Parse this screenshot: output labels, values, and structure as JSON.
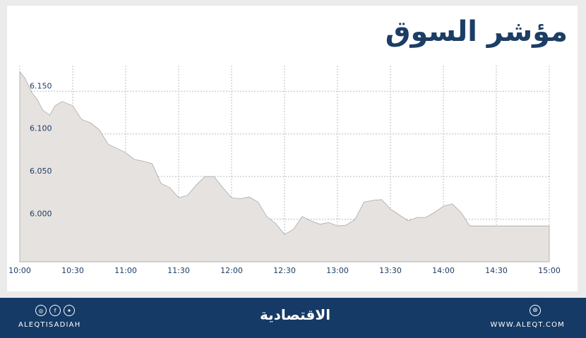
{
  "header": {
    "title": "مؤشر السوق"
  },
  "chart_data": {
    "type": "area",
    "title": "مؤشر السوق",
    "xlabel": "",
    "ylabel": "",
    "x_ticks": [
      "10:00",
      "10:30",
      "11:00",
      "11:30",
      "12:00",
      "12:30",
      "13:00",
      "13:30",
      "14:00",
      "14:30",
      "15:00"
    ],
    "y_ticks": [
      "6.150",
      "6.100",
      "6.050",
      "6.000"
    ],
    "ylim": [
      5.95,
      6.18
    ],
    "grid": true,
    "series": [
      {
        "x_minutes": [
          0,
          3,
          7,
          10,
          13,
          17,
          20,
          24,
          30,
          35,
          40,
          45,
          50,
          55,
          60,
          65,
          70,
          75,
          80,
          85,
          90,
          95,
          100,
          105,
          110,
          115,
          120,
          125,
          130,
          135,
          140,
          145,
          150,
          155,
          160,
          165,
          170,
          175,
          180,
          185,
          190,
          195,
          200,
          205,
          210,
          215,
          220,
          225,
          230,
          235,
          240,
          245,
          250,
          255,
          260,
          265,
          270,
          275,
          280,
          285,
          290,
          295,
          300
        ],
        "values": [
          6.173,
          6.165,
          6.148,
          6.14,
          6.128,
          6.122,
          6.133,
          6.138,
          6.133,
          6.117,
          6.113,
          6.105,
          6.088,
          6.083,
          6.078,
          6.07,
          6.068,
          6.065,
          6.042,
          6.037,
          6.025,
          6.028,
          6.04,
          6.05,
          6.05,
          6.037,
          6.025,
          6.024,
          6.026,
          6.02,
          6.003,
          5.995,
          5.982,
          5.988,
          6.003,
          5.998,
          5.994,
          5.996,
          5.992,
          5.993,
          6.0,
          6.02,
          6.022,
          6.023,
          6.012,
          6.005,
          5.998,
          6.002,
          6.002,
          6.008,
          6.015,
          6.018,
          6.008,
          5.992,
          5.992,
          5.992,
          5.992,
          5.992,
          5.992,
          5.992,
          5.992,
          5.992,
          5.992
        ]
      }
    ],
    "colors": {
      "fill": "#e5e2df",
      "line": "#aaaaaa",
      "grid": "#bdbdbd"
    }
  },
  "footer": {
    "handle": "ALEQTISADIAH",
    "brand": "الاقتصادية",
    "website": "WWW.ALEQT.COM",
    "social_icons": [
      "instagram-icon",
      "facebook-icon",
      "twitter-icon"
    ],
    "web_icon": "globe-icon"
  }
}
